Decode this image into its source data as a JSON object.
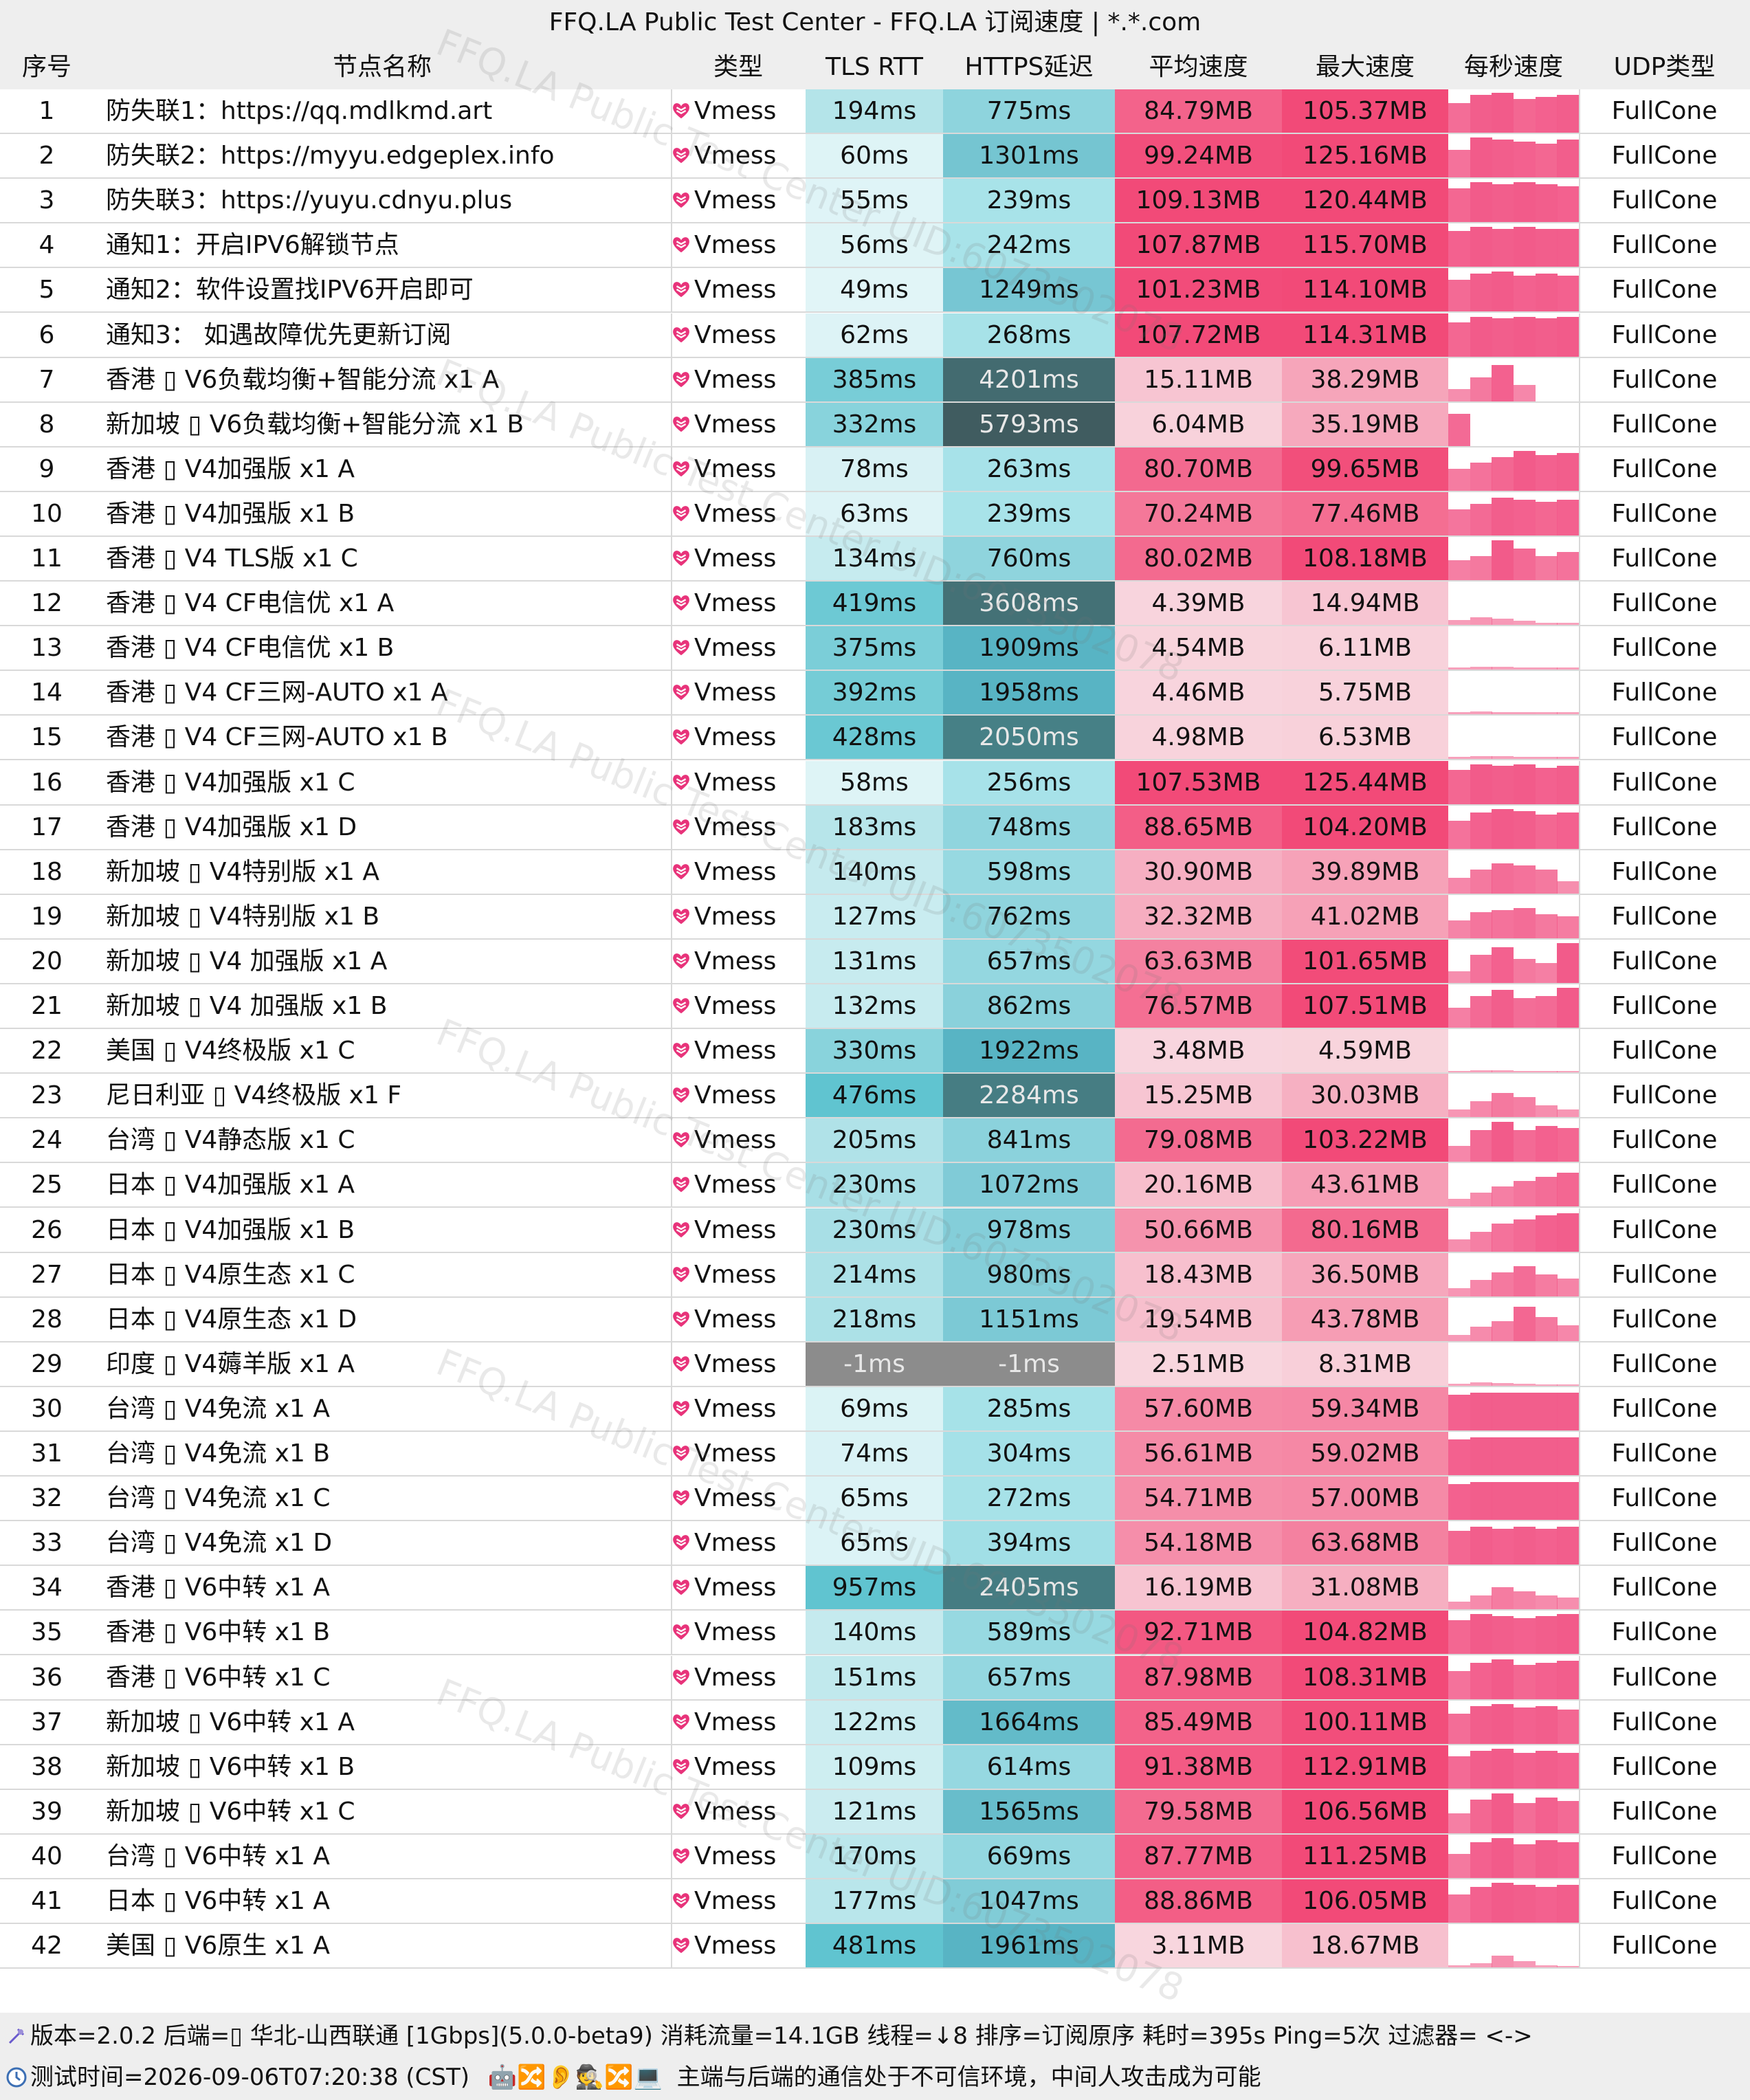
{
  "title": "FFQ.LA Public Test Center - FFQ.LA 订阅速度 | *.*.com",
  "watermark": [
    "FFQ.LA Public Test Center UID:6073502078"
  ],
  "columns": [
    "序号",
    "节点名称",
    "类型",
    "TLS RTT",
    "HTTPS延迟",
    "平均速度",
    "最大速度",
    "每秒速度",
    "UDP类型"
  ],
  "rows": [
    {
      "id": "1",
      "name": "防失联1：https://qq.mdlkmd.art",
      "type": "Vmess",
      "tls": "194ms",
      "https": "775ms",
      "avg": "84.79MB",
      "max": "105.37MB",
      "udp": "FullCone",
      "spark": [
        0.75,
        0.95,
        1.0,
        0.85,
        0.9,
        0.95
      ]
    },
    {
      "id": "2",
      "name": "防失联2：https://myyu.edgeplex.info",
      "type": "Vmess",
      "tls": "60ms",
      "https": "1301ms",
      "avg": "99.24MB",
      "max": "125.16MB",
      "udp": "FullCone",
      "spark": [
        0.7,
        1.0,
        0.95,
        0.9,
        0.85,
        0.95
      ]
    },
    {
      "id": "3",
      "name": "防失联3：https://yuyu.cdnyu.plus",
      "type": "Vmess",
      "tls": "55ms",
      "https": "239ms",
      "avg": "109.13MB",
      "max": "120.44MB",
      "udp": "FullCone",
      "spark": [
        0.85,
        1.0,
        0.95,
        1.0,
        0.95,
        0.9
      ]
    },
    {
      "id": "4",
      "name": "通知1：开启IPV6解锁节点",
      "type": "Vmess",
      "tls": "56ms",
      "https": "242ms",
      "avg": "107.87MB",
      "max": "115.70MB",
      "udp": "FullCone",
      "spark": [
        0.9,
        1.0,
        0.95,
        1.0,
        0.95,
        0.95
      ]
    },
    {
      "id": "5",
      "name": "通知2：软件设置找IPV6开启即可",
      "type": "Vmess",
      "tls": "49ms",
      "https": "1249ms",
      "avg": "101.23MB",
      "max": "114.10MB",
      "udp": "FullCone",
      "spark": [
        0.8,
        0.95,
        1.0,
        0.9,
        0.95,
        0.9
      ]
    },
    {
      "id": "6",
      "name": "通知3： 如遇故障优先更新订阅",
      "type": "Vmess",
      "tls": "62ms",
      "https": "268ms",
      "avg": "107.72MB",
      "max": "114.31MB",
      "udp": "FullCone",
      "spark": [
        0.85,
        1.0,
        0.95,
        1.0,
        0.95,
        1.0
      ]
    },
    {
      "id": "7",
      "name": "香港 ▯ V6负载均衡+智能分流 x1 A",
      "type": "Vmess",
      "tls": "385ms",
      "https": "4201ms",
      "avg": "15.11MB",
      "max": "38.29MB",
      "udp": "FullCone",
      "spark": [
        0.3,
        0.6,
        0.9,
        0.4,
        0.0,
        0.0
      ]
    },
    {
      "id": "8",
      "name": "新加坡 ▯ V6负载均衡+智能分流 x1 B",
      "type": "Vmess",
      "tls": "332ms",
      "https": "5793ms",
      "avg": "6.04MB",
      "max": "35.19MB",
      "udp": "FullCone",
      "spark": [
        0.8,
        0.0,
        0.0,
        0.0,
        0.0,
        0.0
      ]
    },
    {
      "id": "9",
      "name": "香港 ▯ V4加强版 x1 A",
      "type": "Vmess",
      "tls": "78ms",
      "https": "263ms",
      "avg": "80.70MB",
      "max": "99.65MB",
      "udp": "FullCone",
      "spark": [
        0.55,
        0.7,
        0.85,
        1.0,
        0.9,
        0.95
      ]
    },
    {
      "id": "10",
      "name": "香港 ▯ V4加强版 x1 B",
      "type": "Vmess",
      "tls": "63ms",
      "https": "239ms",
      "avg": "70.24MB",
      "max": "77.46MB",
      "udp": "FullCone",
      "spark": [
        0.65,
        0.8,
        0.95,
        0.9,
        0.85,
        0.9
      ]
    },
    {
      "id": "11",
      "name": "香港 ▯ V4 TLS版 x1 C",
      "type": "Vmess",
      "tls": "134ms",
      "https": "760ms",
      "avg": "80.02MB",
      "max": "108.18MB",
      "udp": "FullCone",
      "spark": [
        0.5,
        0.6,
        1.0,
        0.8,
        0.6,
        0.7
      ]
    },
    {
      "id": "12",
      "name": "香港 ▯ V4 CF电信优 x1 A",
      "type": "Vmess",
      "tls": "419ms",
      "https": "3608ms",
      "avg": "4.39MB",
      "max": "14.94MB",
      "udp": "FullCone",
      "spark": [
        0.12,
        0.2,
        0.15,
        0.1,
        0.05,
        0.05
      ]
    },
    {
      "id": "13",
      "name": "香港 ▯ V4 CF电信优 x1 B",
      "type": "Vmess",
      "tls": "375ms",
      "https": "1909ms",
      "avg": "4.54MB",
      "max": "6.11MB",
      "udp": "FullCone",
      "spark": [
        0.06,
        0.08,
        0.07,
        0.06,
        0.06,
        0.05
      ]
    },
    {
      "id": "14",
      "name": "香港 ▯ V4 CF三网-AUTO x1 A",
      "type": "Vmess",
      "tls": "392ms",
      "https": "1958ms",
      "avg": "4.46MB",
      "max": "5.75MB",
      "udp": "FullCone",
      "spark": [
        0.06,
        0.07,
        0.06,
        0.06,
        0.05,
        0.05
      ]
    },
    {
      "id": "15",
      "name": "香港 ▯ V4 CF三网-AUTO x1 B",
      "type": "Vmess",
      "tls": "428ms",
      "https": "2050ms",
      "avg": "4.98MB",
      "max": "6.53MB",
      "udp": "FullCone",
      "spark": [
        0.06,
        0.08,
        0.07,
        0.06,
        0.06,
        0.06
      ]
    },
    {
      "id": "16",
      "name": "香港 ▯ V4加强版 x1 C",
      "type": "Vmess",
      "tls": "58ms",
      "https": "256ms",
      "avg": "107.53MB",
      "max": "125.44MB",
      "udp": "FullCone",
      "spark": [
        0.85,
        1.0,
        0.95,
        1.0,
        0.9,
        0.95
      ]
    },
    {
      "id": "17",
      "name": "香港 ▯ V4加强版 x1 D",
      "type": "Vmess",
      "tls": "183ms",
      "https": "748ms",
      "avg": "88.65MB",
      "max": "104.20MB",
      "udp": "FullCone",
      "spark": [
        0.7,
        0.9,
        1.0,
        0.95,
        0.85,
        0.9
      ]
    },
    {
      "id": "18",
      "name": "新加坡 ▯ V4特别版 x1 A",
      "type": "Vmess",
      "tls": "140ms",
      "https": "598ms",
      "avg": "30.90MB",
      "max": "39.89MB",
      "udp": "FullCone",
      "spark": [
        0.4,
        0.6,
        0.75,
        0.7,
        0.6,
        0.3
      ]
    },
    {
      "id": "19",
      "name": "新加坡 ▯ V4特别版 x1 B",
      "type": "Vmess",
      "tls": "127ms",
      "https": "762ms",
      "avg": "32.32MB",
      "max": "41.02MB",
      "udp": "FullCone",
      "spark": [
        0.45,
        0.65,
        0.7,
        0.75,
        0.6,
        0.55
      ]
    },
    {
      "id": "20",
      "name": "新加坡 ▯ V4 加强版 x1 A",
      "type": "Vmess",
      "tls": "131ms",
      "https": "657ms",
      "avg": "63.63MB",
      "max": "101.65MB",
      "udp": "FullCone",
      "spark": [
        0.3,
        0.7,
        0.9,
        0.6,
        0.5,
        1.0
      ]
    },
    {
      "id": "21",
      "name": "新加坡 ▯ V4 加强版 x1 B",
      "type": "Vmess",
      "tls": "132ms",
      "https": "862ms",
      "avg": "76.57MB",
      "max": "107.51MB",
      "udp": "FullCone",
      "spark": [
        0.5,
        0.8,
        0.95,
        0.75,
        0.8,
        1.0
      ]
    },
    {
      "id": "22",
      "name": "美国 ▯ V4终极版 x1 C",
      "type": "Vmess",
      "tls": "330ms",
      "https": "1922ms",
      "avg": "3.48MB",
      "max": "4.59MB",
      "udp": "FullCone",
      "spark": [
        0.04,
        0.05,
        0.05,
        0.04,
        0.04,
        0.04
      ]
    },
    {
      "id": "23",
      "name": "尼日利亚 ▯ V4终极版 x1 F",
      "type": "Vmess",
      "tls": "476ms",
      "https": "2284ms",
      "avg": "15.25MB",
      "max": "30.03MB",
      "udp": "FullCone",
      "spark": [
        0.2,
        0.4,
        0.6,
        0.5,
        0.3,
        0.2
      ]
    },
    {
      "id": "24",
      "name": "台湾 ▯ V4静态版 x1 C",
      "type": "Vmess",
      "tls": "205ms",
      "https": "841ms",
      "avg": "79.08MB",
      "max": "103.22MB",
      "udp": "FullCone",
      "spark": [
        0.4,
        0.8,
        1.0,
        0.8,
        0.9,
        0.85
      ]
    },
    {
      "id": "25",
      "name": "日本 ▯ V4加强版 x1 A",
      "type": "Vmess",
      "tls": "230ms",
      "https": "1072ms",
      "avg": "20.16MB",
      "max": "43.61MB",
      "udp": "FullCone",
      "spark": [
        0.2,
        0.35,
        0.5,
        0.65,
        0.75,
        0.85
      ]
    },
    {
      "id": "26",
      "name": "日本 ▯ V4加强版 x1 B",
      "type": "Vmess",
      "tls": "230ms",
      "https": "978ms",
      "avg": "50.66MB",
      "max": "80.16MB",
      "udp": "FullCone",
      "spark": [
        0.3,
        0.5,
        0.7,
        0.8,
        0.9,
        0.95
      ]
    },
    {
      "id": "27",
      "name": "日本 ▯ V4原生态 x1 C",
      "type": "Vmess",
      "tls": "214ms",
      "https": "980ms",
      "avg": "18.43MB",
      "max": "36.50MB",
      "udp": "FullCone",
      "spark": [
        0.2,
        0.4,
        0.6,
        0.75,
        0.55,
        0.45
      ]
    },
    {
      "id": "28",
      "name": "日本 ▯ V4原生态 x1 D",
      "type": "Vmess",
      "tls": "218ms",
      "https": "1151ms",
      "avg": "19.54MB",
      "max": "43.78MB",
      "udp": "FullCone",
      "spark": [
        0.15,
        0.35,
        0.5,
        0.85,
        0.6,
        0.4
      ]
    },
    {
      "id": "29",
      "name": "印度 ▯ V4薅羊版 x1 A",
      "type": "Vmess",
      "tls": "-1ms",
      "https": "-1ms",
      "avg": "2.51MB",
      "max": "8.31MB",
      "udp": "FullCone",
      "spark": [
        0.05,
        0.08,
        0.06,
        0.04,
        0.03,
        0.03
      ]
    },
    {
      "id": "30",
      "name": "台湾 ▯ V4免流 x1 A",
      "type": "Vmess",
      "tls": "69ms",
      "https": "285ms",
      "avg": "57.60MB",
      "max": "59.34MB",
      "udp": "FullCone",
      "spark": [
        0.9,
        0.95,
        0.95,
        0.95,
        0.95,
        0.95
      ]
    },
    {
      "id": "31",
      "name": "台湾 ▯ V4免流 x1 B",
      "type": "Vmess",
      "tls": "74ms",
      "https": "304ms",
      "avg": "56.61MB",
      "max": "59.02MB",
      "udp": "FullCone",
      "spark": [
        0.9,
        0.95,
        0.95,
        0.95,
        0.95,
        0.95
      ]
    },
    {
      "id": "32",
      "name": "台湾 ▯ V4免流 x1 C",
      "type": "Vmess",
      "tls": "65ms",
      "https": "272ms",
      "avg": "54.71MB",
      "max": "57.00MB",
      "udp": "FullCone",
      "spark": [
        0.9,
        0.95,
        0.95,
        0.95,
        0.95,
        0.95
      ]
    },
    {
      "id": "33",
      "name": "台湾 ▯ V4免流 x1 D",
      "type": "Vmess",
      "tls": "65ms",
      "https": "394ms",
      "avg": "54.18MB",
      "max": "63.68MB",
      "udp": "FullCone",
      "spark": [
        0.85,
        0.95,
        0.9,
        0.95,
        0.9,
        0.95
      ]
    },
    {
      "id": "34",
      "name": "香港 ▯ V6中转 x1 A",
      "type": "Vmess",
      "tls": "957ms",
      "https": "2405ms",
      "avg": "16.19MB",
      "max": "31.08MB",
      "udp": "FullCone",
      "spark": [
        0.2,
        0.35,
        0.55,
        0.45,
        0.35,
        0.3
      ]
    },
    {
      "id": "35",
      "name": "香港 ▯ V6中转 x1 B",
      "type": "Vmess",
      "tls": "140ms",
      "https": "589ms",
      "avg": "92.71MB",
      "max": "104.82MB",
      "udp": "FullCone",
      "spark": [
        0.85,
        1.0,
        0.95,
        0.9,
        0.95,
        1.0
      ]
    },
    {
      "id": "36",
      "name": "香港 ▯ V6中转 x1 C",
      "type": "Vmess",
      "tls": "151ms",
      "https": "657ms",
      "avg": "87.98MB",
      "max": "108.31MB",
      "udp": "FullCone",
      "spark": [
        0.7,
        0.9,
        1.0,
        0.85,
        0.9,
        0.95
      ]
    },
    {
      "id": "37",
      "name": "新加坡 ▯ V6中转 x1 A",
      "type": "Vmess",
      "tls": "122ms",
      "https": "1664ms",
      "avg": "85.49MB",
      "max": "100.11MB",
      "udp": "FullCone",
      "spark": [
        0.75,
        0.95,
        1.0,
        0.9,
        0.95,
        0.85
      ]
    },
    {
      "id": "38",
      "name": "新加坡 ▯ V6中转 x1 B",
      "type": "Vmess",
      "tls": "109ms",
      "https": "614ms",
      "avg": "91.38MB",
      "max": "112.91MB",
      "udp": "FullCone",
      "spark": [
        0.8,
        0.95,
        1.0,
        0.9,
        0.95,
        0.9
      ]
    },
    {
      "id": "39",
      "name": "新加坡 ▯ V6中转 x1 C",
      "type": "Vmess",
      "tls": "121ms",
      "https": "1565ms",
      "avg": "79.58MB",
      "max": "106.56MB",
      "udp": "FullCone",
      "spark": [
        0.5,
        0.85,
        1.0,
        0.75,
        0.9,
        0.8
      ]
    },
    {
      "id": "40",
      "name": "台湾 ▯ V6中转 x1 A",
      "type": "Vmess",
      "tls": "170ms",
      "https": "669ms",
      "avg": "87.77MB",
      "max": "111.25MB",
      "udp": "FullCone",
      "spark": [
        0.6,
        0.9,
        1.0,
        0.85,
        0.95,
        0.9
      ]
    },
    {
      "id": "41",
      "name": "日本 ▯ V6中转 x1 A",
      "type": "Vmess",
      "tls": "177ms",
      "https": "1047ms",
      "avg": "88.86MB",
      "max": "106.05MB",
      "udp": "FullCone",
      "spark": [
        0.7,
        0.9,
        1.0,
        0.95,
        0.9,
        0.95
      ]
    },
    {
      "id": "42",
      "name": "美国 ▯ V6原生 x1 A",
      "type": "Vmess",
      "tls": "481ms",
      "https": "1961ms",
      "avg": "3.11MB",
      "max": "18.67MB",
      "udp": "FullCone",
      "spark": [
        0.05,
        0.1,
        0.3,
        0.15,
        0.05,
        0.03
      ]
    }
  ],
  "footer": {
    "line1": "版本=2.0.2  后端=▯ 华北-山西联通 [1Gbps](5.0.0-beta9) 消耗流量=14.1GB  线程=↓8  排序=订阅原序  耗时=395s  Ping=5次  过滤器= <->",
    "line2_time": "测试时间=2026-09-06T07:20:38 (CST)",
    "line2_emoji": "🤖🔀👂🕵️🔀💻",
    "line2_text": "主端与后端的通信处于不可信环境，中间人攻击成为可能"
  },
  "colors": {
    "speed_bar": "#f25b8a",
    "header_bg": "#eeeeee"
  }
}
